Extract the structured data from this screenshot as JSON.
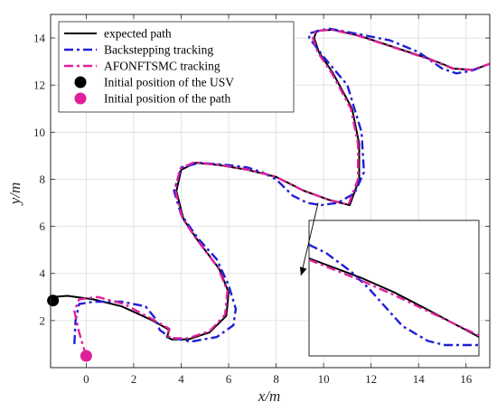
{
  "chart_data": {
    "type": "line",
    "xlabel": "x/m",
    "ylabel": "y/m",
    "xlim": [
      -1.5,
      17
    ],
    "ylim": [
      0,
      15
    ],
    "xticks": [
      0,
      2,
      4,
      6,
      8,
      10,
      12,
      14,
      16
    ],
    "yticks": [
      2,
      4,
      6,
      8,
      10,
      12,
      14
    ],
    "grid": true,
    "legend": {
      "placement": "top-left",
      "entries": [
        {
          "label": "expected path",
          "color": "#000000",
          "style": "solid"
        },
        {
          "label": "Backstepping tracking",
          "color": "#1f1fd6",
          "style": "dashdot"
        },
        {
          "label": "AFONFTSMC tracking",
          "color": "#e0209a",
          "style": "dashdot"
        },
        {
          "label": "Initial position of the USV",
          "color": "#000000",
          "style": "marker"
        },
        {
          "label": "Initial position of the path",
          "color": "#e0209a",
          "style": "marker"
        }
      ]
    },
    "series": [
      {
        "name": "expected path",
        "color": "#000000",
        "style": "solid",
        "x": [
          -1.4,
          -0.8,
          0.3,
          1.5,
          2.8,
          3.5,
          3.4,
          3.6,
          4.3,
          5.2,
          5.9,
          6.0,
          5.6,
          4.7,
          4.1,
          3.8,
          4.0,
          4.6,
          5.6,
          6.8,
          8.0,
          9.2,
          10.3,
          11.1,
          11.5,
          11.5,
          11.2,
          10.4,
          9.8,
          9.6,
          9.7,
          10.4,
          11.5,
          13.0,
          14.5,
          15.5,
          16.3,
          17.0
        ],
        "y": [
          3.0,
          3.05,
          2.9,
          2.6,
          2.0,
          1.6,
          1.3,
          1.2,
          1.2,
          1.5,
          2.2,
          3.2,
          4.2,
          5.4,
          6.3,
          7.5,
          8.4,
          8.7,
          8.6,
          8.4,
          8.1,
          7.5,
          7.1,
          6.9,
          8.0,
          9.5,
          11.0,
          12.5,
          13.4,
          14.0,
          14.3,
          14.35,
          14.1,
          13.6,
          13.1,
          12.7,
          12.65,
          12.9
        ]
      },
      {
        "name": "Backstepping tracking",
        "color": "#1f1fd6",
        "style": "dashdot",
        "x": [
          -0.5,
          -0.45,
          -0.3,
          0.3,
          1.5,
          2.5,
          2.9,
          3.1,
          3.5,
          4.4,
          5.5,
          6.2,
          6.3,
          6.0,
          5.5,
          4.7,
          4.0,
          3.7,
          4.0,
          4.8,
          6.0,
          6.8,
          7.4,
          8.0,
          8.7,
          9.3,
          9.9,
          10.6,
          11.3,
          11.7,
          11.6,
          11.0,
          10.0,
          9.4,
          9.4,
          10.2,
          11.3,
          12.8,
          14.0,
          15.0,
          15.6,
          16.2,
          17.0
        ],
        "y": [
          1.0,
          2.0,
          2.7,
          2.8,
          2.8,
          2.6,
          2.1,
          1.6,
          1.3,
          1.1,
          1.3,
          1.8,
          2.5,
          3.5,
          4.6,
          5.5,
          6.5,
          7.5,
          8.5,
          8.7,
          8.6,
          8.5,
          8.3,
          8.0,
          7.3,
          7.0,
          6.9,
          7.0,
          7.4,
          8.3,
          10.0,
          12.0,
          13.2,
          14.0,
          14.2,
          14.4,
          14.2,
          13.9,
          13.4,
          12.7,
          12.5,
          12.6,
          12.9
        ]
      },
      {
        "name": "AFONFTSMC tracking",
        "color": "#e0209a",
        "style": "dashdot",
        "x": [
          0.0,
          -0.3,
          -0.5,
          -0.3,
          0.5,
          1.6,
          2.8,
          3.5,
          3.4,
          3.6,
          4.3,
          5.2,
          5.85,
          5.95,
          5.55,
          4.65,
          4.05,
          3.75,
          3.95,
          4.55,
          5.55,
          6.75,
          7.95,
          9.15,
          10.25,
          11.05,
          11.45,
          11.45,
          11.15,
          10.35,
          9.75,
          9.55,
          9.65,
          10.35,
          11.45,
          12.95,
          14.45,
          15.45,
          16.25,
          17.0
        ],
        "y": [
          0.5,
          1.5,
          2.4,
          2.9,
          3.0,
          2.7,
          2.05,
          1.65,
          1.35,
          1.25,
          1.25,
          1.55,
          2.25,
          3.25,
          4.25,
          5.45,
          6.35,
          7.55,
          8.45,
          8.72,
          8.62,
          8.42,
          8.12,
          7.52,
          7.12,
          6.92,
          8.0,
          9.5,
          11.0,
          12.5,
          13.4,
          14.0,
          14.3,
          14.35,
          14.1,
          13.6,
          13.1,
          12.7,
          12.65,
          12.9
        ]
      }
    ],
    "markers": [
      {
        "name": "Initial position of the USV",
        "x": -1.4,
        "y": 2.85,
        "color": "#000000"
      },
      {
        "name": "Initial position of the path",
        "x": 0.0,
        "y": 0.5,
        "color": "#e0209a"
      }
    ],
    "inset": {
      "zoom_source": {
        "x": 10.0,
        "y": 7.0
      },
      "series": [
        {
          "name": "expected path",
          "color": "#000000",
          "style": "solid",
          "x": [
            0,
            0.3,
            0.5,
            0.7,
            1.0
          ],
          "y": [
            0.72,
            0.58,
            0.47,
            0.34,
            0.14
          ]
        },
        {
          "name": "Backstepping tracking",
          "color": "#1f1fd6",
          "style": "dashdot",
          "x": [
            0,
            0.1,
            0.25,
            0.35,
            0.45,
            0.55,
            0.7,
            0.8,
            0.9,
            1.0
          ],
          "y": [
            0.82,
            0.76,
            0.62,
            0.5,
            0.36,
            0.22,
            0.11,
            0.08,
            0.08,
            0.08
          ]
        },
        {
          "name": "AFONFTSMC tracking",
          "color": "#e0209a",
          "style": "dashdot",
          "x": [
            0,
            0.3,
            0.5,
            0.7,
            1.0
          ],
          "y": [
            0.71,
            0.56,
            0.45,
            0.33,
            0.15
          ]
        }
      ]
    }
  }
}
